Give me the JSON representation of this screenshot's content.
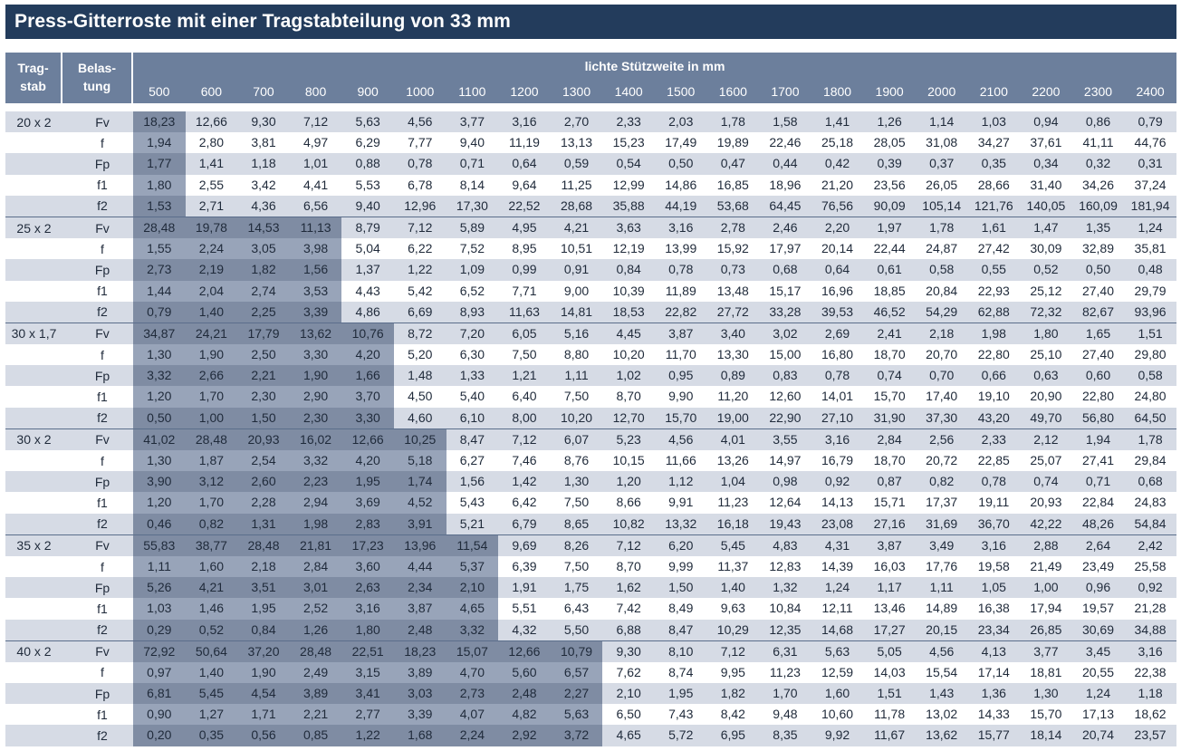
{
  "title": "Press-Gitterroste mit einer Tragstabteilung von 33 mm",
  "header": {
    "tragstab": [
      "Trag-",
      "stab"
    ],
    "belastung": [
      "Belas-",
      "tung"
    ],
    "spans_title": "lichte Stützweite in mm",
    "spans": [
      "500",
      "600",
      "700",
      "800",
      "900",
      "1000",
      "1100",
      "1200",
      "1300",
      "1400",
      "1500",
      "1600",
      "1700",
      "1800",
      "1900",
      "2000",
      "2100",
      "2200",
      "2300",
      "2400"
    ]
  },
  "groups": [
    {
      "tragstab": "20 x 2",
      "shade_cols": 1,
      "rows": [
        {
          "label": "Fv",
          "values": [
            "18,23",
            "12,66",
            "9,30",
            "7,12",
            "5,63",
            "4,56",
            "3,77",
            "3,16",
            "2,70",
            "2,33",
            "2,03",
            "1,78",
            "1,58",
            "1,41",
            "1,26",
            "1,14",
            "1,03",
            "0,94",
            "0,86",
            "0,79"
          ]
        },
        {
          "label": "f",
          "values": [
            "1,94",
            "2,80",
            "3,81",
            "4,97",
            "6,29",
            "7,77",
            "9,40",
            "11,19",
            "13,13",
            "15,23",
            "17,49",
            "19,89",
            "22,46",
            "25,18",
            "28,05",
            "31,08",
            "34,27",
            "37,61",
            "41,11",
            "44,76"
          ]
        },
        {
          "label": "Fp",
          "values": [
            "1,77",
            "1,41",
            "1,18",
            "1,01",
            "0,88",
            "0,78",
            "0,71",
            "0,64",
            "0,59",
            "0,54",
            "0,50",
            "0,47",
            "0,44",
            "0,42",
            "0,39",
            "0,37",
            "0,35",
            "0,34",
            "0,32",
            "0,31"
          ]
        },
        {
          "label": "f1",
          "values": [
            "1,80",
            "2,55",
            "3,42",
            "4,41",
            "5,53",
            "6,78",
            "8,14",
            "9,64",
            "11,25",
            "12,99",
            "14,86",
            "16,85",
            "18,96",
            "21,20",
            "23,56",
            "26,05",
            "28,66",
            "31,40",
            "34,26",
            "37,24"
          ]
        },
        {
          "label": "f2",
          "values": [
            "1,53",
            "2,71",
            "4,36",
            "6,56",
            "9,40",
            "12,96",
            "17,30",
            "22,52",
            "28,68",
            "35,88",
            "44,19",
            "53,68",
            "64,45",
            "76,56",
            "90,09",
            "105,14",
            "121,76",
            "140,05",
            "160,09",
            "181,94"
          ]
        }
      ]
    },
    {
      "tragstab": "25 x 2",
      "shade_cols": 4,
      "rows": [
        {
          "label": "Fv",
          "values": [
            "28,48",
            "19,78",
            "14,53",
            "11,13",
            "8,79",
            "7,12",
            "5,89",
            "4,95",
            "4,21",
            "3,63",
            "3,16",
            "2,78",
            "2,46",
            "2,20",
            "1,97",
            "1,78",
            "1,61",
            "1,47",
            "1,35",
            "1,24"
          ]
        },
        {
          "label": "f",
          "values": [
            "1,55",
            "2,24",
            "3,05",
            "3,98",
            "5,04",
            "6,22",
            "7,52",
            "8,95",
            "10,51",
            "12,19",
            "13,99",
            "15,92",
            "17,97",
            "20,14",
            "22,44",
            "24,87",
            "27,42",
            "30,09",
            "32,89",
            "35,81"
          ]
        },
        {
          "label": "Fp",
          "values": [
            "2,73",
            "2,19",
            "1,82",
            "1,56",
            "1,37",
            "1,22",
            "1,09",
            "0,99",
            "0,91",
            "0,84",
            "0,78",
            "0,73",
            "0,68",
            "0,64",
            "0,61",
            "0,58",
            "0,55",
            "0,52",
            "0,50",
            "0,48"
          ]
        },
        {
          "label": "f1",
          "values": [
            "1,44",
            "2,04",
            "2,74",
            "3,53",
            "4,43",
            "5,42",
            "6,52",
            "7,71",
            "9,00",
            "10,39",
            "11,89",
            "13,48",
            "15,17",
            "16,96",
            "18,85",
            "20,84",
            "22,93",
            "25,12",
            "27,40",
            "29,79"
          ]
        },
        {
          "label": "f2",
          "values": [
            "0,79",
            "1,40",
            "2,25",
            "3,39",
            "4,86",
            "6,69",
            "8,93",
            "11,63",
            "14,81",
            "18,53",
            "22,82",
            "27,72",
            "33,28",
            "39,53",
            "46,52",
            "54,29",
            "62,88",
            "72,32",
            "82,67",
            "93,96"
          ]
        }
      ]
    },
    {
      "tragstab": "30 x 1,7",
      "shade_cols": 5,
      "rows": [
        {
          "label": "Fv",
          "values": [
            "34,87",
            "24,21",
            "17,79",
            "13,62",
            "10,76",
            "8,72",
            "7,20",
            "6,05",
            "5,16",
            "4,45",
            "3,87",
            "3,40",
            "3,02",
            "2,69",
            "2,41",
            "2,18",
            "1,98",
            "1,80",
            "1,65",
            "1,51"
          ]
        },
        {
          "label": "f",
          "values": [
            "1,30",
            "1,90",
            "2,50",
            "3,30",
            "4,20",
            "5,20",
            "6,30",
            "7,50",
            "8,80",
            "10,20",
            "11,70",
            "13,30",
            "15,00",
            "16,80",
            "18,70",
            "20,70",
            "22,80",
            "25,10",
            "27,40",
            "29,80"
          ]
        },
        {
          "label": "Fp",
          "values": [
            "3,32",
            "2,66",
            "2,21",
            "1,90",
            "1,66",
            "1,48",
            "1,33",
            "1,21",
            "1,11",
            "1,02",
            "0,95",
            "0,89",
            "0,83",
            "0,78",
            "0,74",
            "0,70",
            "0,66",
            "0,63",
            "0,60",
            "0,58"
          ]
        },
        {
          "label": "f1",
          "values": [
            "1,20",
            "1,70",
            "2,30",
            "2,90",
            "3,70",
            "4,50",
            "5,40",
            "6,40",
            "7,50",
            "8,70",
            "9,90",
            "11,20",
            "12,60",
            "14,01",
            "15,70",
            "17,40",
            "19,10",
            "20,90",
            "22,80",
            "24,80"
          ]
        },
        {
          "label": "f2",
          "values": [
            "0,50",
            "1,00",
            "1,50",
            "2,30",
            "3,30",
            "4,60",
            "6,10",
            "8,00",
            "10,20",
            "12,70",
            "15,70",
            "19,00",
            "22,90",
            "27,10",
            "31,90",
            "37,30",
            "43,20",
            "49,70",
            "56,80",
            "64,50"
          ]
        }
      ]
    },
    {
      "tragstab": "30 x 2",
      "shade_cols": 6,
      "rows": [
        {
          "label": "Fv",
          "values": [
            "41,02",
            "28,48",
            "20,93",
            "16,02",
            "12,66",
            "10,25",
            "8,47",
            "7,12",
            "6,07",
            "5,23",
            "4,56",
            "4,01",
            "3,55",
            "3,16",
            "2,84",
            "2,56",
            "2,33",
            "2,12",
            "1,94",
            "1,78"
          ]
        },
        {
          "label": "f",
          "values": [
            "1,30",
            "1,87",
            "2,54",
            "3,32",
            "4,20",
            "5,18",
            "6,27",
            "7,46",
            "8,76",
            "10,15",
            "11,66",
            "13,26",
            "14,97",
            "16,79",
            "18,70",
            "20,72",
            "22,85",
            "25,07",
            "27,41",
            "29,84"
          ]
        },
        {
          "label": "Fp",
          "values": [
            "3,90",
            "3,12",
            "2,60",
            "2,23",
            "1,95",
            "1,74",
            "1,56",
            "1,42",
            "1,30",
            "1,20",
            "1,12",
            "1,04",
            "0,98",
            "0,92",
            "0,87",
            "0,82",
            "0,78",
            "0,74",
            "0,71",
            "0,68"
          ]
        },
        {
          "label": "f1",
          "values": [
            "1,20",
            "1,70",
            "2,28",
            "2,94",
            "3,69",
            "4,52",
            "5,43",
            "6,42",
            "7,50",
            "8,66",
            "9,91",
            "11,23",
            "12,64",
            "14,13",
            "15,71",
            "17,37",
            "19,11",
            "20,93",
            "22,84",
            "24,83"
          ]
        },
        {
          "label": "f2",
          "values": [
            "0,46",
            "0,82",
            "1,31",
            "1,98",
            "2,83",
            "3,91",
            "5,21",
            "6,79",
            "8,65",
            "10,82",
            "13,32",
            "16,18",
            "19,43",
            "23,08",
            "27,16",
            "31,69",
            "36,70",
            "42,22",
            "48,26",
            "54,84"
          ]
        }
      ]
    },
    {
      "tragstab": "35 x 2",
      "shade_cols": 7,
      "rows": [
        {
          "label": "Fv",
          "values": [
            "55,83",
            "38,77",
            "28,48",
            "21,81",
            "17,23",
            "13,96",
            "11,54",
            "9,69",
            "8,26",
            "7,12",
            "6,20",
            "5,45",
            "4,83",
            "4,31",
            "3,87",
            "3,49",
            "3,16",
            "2,88",
            "2,64",
            "2,42"
          ]
        },
        {
          "label": "f",
          "values": [
            "1,11",
            "1,60",
            "2,18",
            "2,84",
            "3,60",
            "4,44",
            "5,37",
            "6,39",
            "7,50",
            "8,70",
            "9,99",
            "11,37",
            "12,83",
            "14,39",
            "16,03",
            "17,76",
            "19,58",
            "21,49",
            "23,49",
            "25,58"
          ]
        },
        {
          "label": "Fp",
          "values": [
            "5,26",
            "4,21",
            "3,51",
            "3,01",
            "2,63",
            "2,34",
            "2,10",
            "1,91",
            "1,75",
            "1,62",
            "1,50",
            "1,40",
            "1,32",
            "1,24",
            "1,17",
            "1,11",
            "1,05",
            "1,00",
            "0,96",
            "0,92"
          ]
        },
        {
          "label": "f1",
          "values": [
            "1,03",
            "1,46",
            "1,95",
            "2,52",
            "3,16",
            "3,87",
            "4,65",
            "5,51",
            "6,43",
            "7,42",
            "8,49",
            "9,63",
            "10,84",
            "12,11",
            "13,46",
            "14,89",
            "16,38",
            "17,94",
            "19,57",
            "21,28"
          ]
        },
        {
          "label": "f2",
          "values": [
            "0,29",
            "0,52",
            "0,84",
            "1,26",
            "1,80",
            "2,48",
            "3,32",
            "4,32",
            "5,50",
            "6,88",
            "8,47",
            "10,29",
            "12,35",
            "14,68",
            "17,27",
            "20,15",
            "23,34",
            "26,85",
            "30,69",
            "34,88"
          ]
        }
      ]
    },
    {
      "tragstab": "40 x 2",
      "shade_cols": 9,
      "rows": [
        {
          "label": "Fv",
          "values": [
            "72,92",
            "50,64",
            "37,20",
            "28,48",
            "22,51",
            "18,23",
            "15,07",
            "12,66",
            "10,79",
            "9,30",
            "8,10",
            "7,12",
            "6,31",
            "5,63",
            "5,05",
            "4,56",
            "4,13",
            "3,77",
            "3,45",
            "3,16"
          ]
        },
        {
          "label": "f",
          "values": [
            "0,97",
            "1,40",
            "1,90",
            "2,49",
            "3,15",
            "3,89",
            "4,70",
            "5,60",
            "6,57",
            "7,62",
            "8,74",
            "9,95",
            "11,23",
            "12,59",
            "14,03",
            "15,54",
            "17,14",
            "18,81",
            "20,55",
            "22,38"
          ]
        },
        {
          "label": "Fp",
          "values": [
            "6,81",
            "5,45",
            "4,54",
            "3,89",
            "3,41",
            "3,03",
            "2,73",
            "2,48",
            "2,27",
            "2,10",
            "1,95",
            "1,82",
            "1,70",
            "1,60",
            "1,51",
            "1,43",
            "1,36",
            "1,30",
            "1,24",
            "1,18"
          ]
        },
        {
          "label": "f1",
          "values": [
            "0,90",
            "1,27",
            "1,71",
            "2,21",
            "2,77",
            "3,39",
            "4,07",
            "4,82",
            "5,63",
            "6,50",
            "7,43",
            "8,42",
            "9,48",
            "10,60",
            "11,78",
            "13,02",
            "14,33",
            "15,70",
            "17,13",
            "18,62"
          ]
        },
        {
          "label": "f2",
          "values": [
            "0,20",
            "0,35",
            "0,56",
            "0,85",
            "1,22",
            "1,68",
            "2,24",
            "2,92",
            "3,72",
            "4,65",
            "5,72",
            "6,95",
            "8,35",
            "9,92",
            "11,67",
            "13,62",
            "15,77",
            "18,14",
            "20,74",
            "23,57"
          ]
        }
      ]
    }
  ]
}
